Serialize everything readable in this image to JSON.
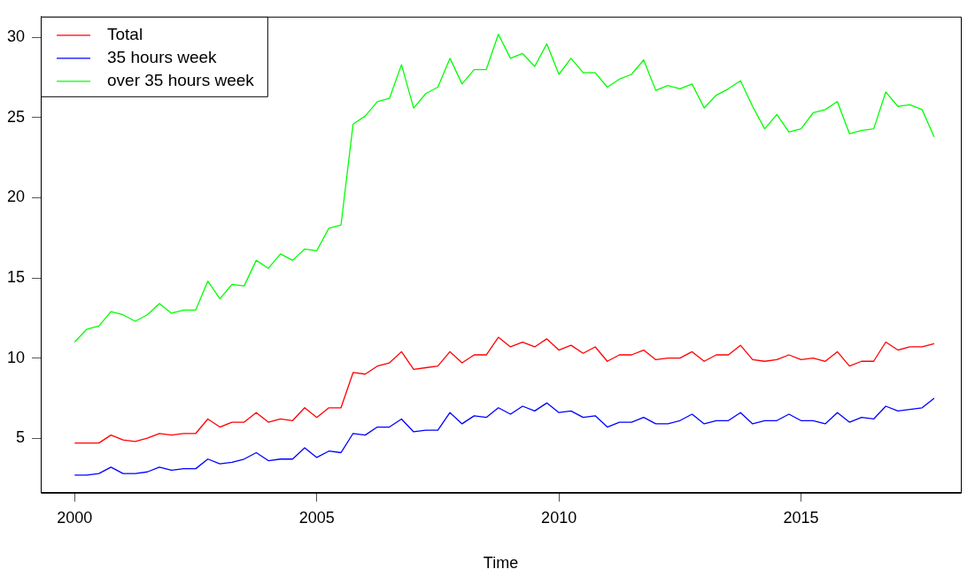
{
  "chart_data": {
    "type": "line",
    "xlabel": "Time",
    "legend": "top left",
    "grid": false,
    "marker": "none",
    "line_style": "solid",
    "x": [
      2000,
      2000.25,
      2000.5,
      2000.75,
      2001,
      2001.25,
      2001.5,
      2001.75,
      2002,
      2002.25,
      2002.5,
      2002.75,
      2003,
      2003.25,
      2003.5,
      2003.75,
      2004,
      2004.25,
      2004.5,
      2004.75,
      2005,
      2005.25,
      2005.5,
      2005.75,
      2006,
      2006.25,
      2006.5,
      2006.75,
      2007,
      2007.25,
      2007.5,
      2007.75,
      2008,
      2008.25,
      2008.5,
      2008.75,
      2009,
      2009.25,
      2009.5,
      2009.75,
      2010,
      2010.25,
      2010.5,
      2010.75,
      2011,
      2011.25,
      2011.5,
      2011.75,
      2012,
      2012.25,
      2012.5,
      2012.75,
      2013,
      2013.25,
      2013.5,
      2013.75,
      2014,
      2014.25,
      2014.5,
      2014.75,
      2015,
      2015.25,
      2015.5,
      2015.75,
      2016,
      2016.25,
      2016.5,
      2016.75,
      2017,
      2017.25,
      2017.5,
      2017.75
    ],
    "xlim": [
      1999.3,
      2018.3
    ],
    "xticks": [
      2000,
      2005,
      2010,
      2015
    ],
    "ylim": [
      1.6,
      31.3
    ],
    "yticks": [
      5,
      10,
      15,
      20,
      25,
      30
    ],
    "series": [
      {
        "name": "Total",
        "color": "#ff0000",
        "values": [
          4.7,
          4.7,
          4.7,
          5.2,
          4.9,
          4.8,
          5.0,
          5.3,
          5.2,
          5.3,
          5.3,
          6.2,
          5.7,
          6.0,
          6.0,
          6.6,
          6.0,
          6.2,
          6.1,
          6.9,
          6.3,
          6.9,
          6.9,
          9.1,
          9.0,
          9.5,
          9.7,
          10.4,
          9.3,
          9.4,
          9.5,
          10.4,
          9.7,
          10.2,
          10.2,
          11.3,
          10.7,
          11.0,
          10.7,
          11.2,
          10.5,
          10.8,
          10.3,
          10.7,
          9.8,
          10.2,
          10.2,
          10.5,
          9.9,
          10.0,
          10.0,
          10.4,
          9.8,
          10.2,
          10.2,
          10.8,
          9.9,
          9.8,
          9.9,
          10.2,
          9.9,
          10.0,
          9.8,
          10.4,
          9.5,
          9.8,
          9.8,
          11.0,
          10.5,
          10.7,
          10.7,
          10.9
        ]
      },
      {
        "name": "35 hours week",
        "color": "#0000ff",
        "values": [
          2.7,
          2.7,
          2.8,
          3.2,
          2.8,
          2.8,
          2.9,
          3.2,
          3.0,
          3.1,
          3.1,
          3.7,
          3.4,
          3.5,
          3.7,
          4.1,
          3.6,
          3.7,
          3.7,
          4.4,
          3.8,
          4.2,
          4.1,
          5.3,
          5.2,
          5.7,
          5.7,
          6.2,
          5.4,
          5.5,
          5.5,
          6.6,
          5.9,
          6.4,
          6.3,
          6.9,
          6.5,
          7.0,
          6.7,
          7.2,
          6.6,
          6.7,
          6.3,
          6.4,
          5.7,
          6.0,
          6.0,
          6.3,
          5.9,
          5.9,
          6.1,
          6.5,
          5.9,
          6.1,
          6.1,
          6.6,
          5.9,
          6.1,
          6.1,
          6.5,
          6.1,
          6.1,
          5.9,
          6.6,
          6.0,
          6.3,
          6.2,
          7.0,
          6.7,
          6.8,
          6.9,
          7.5
        ]
      },
      {
        "name": "over 35 hours week",
        "color": "#00ff00",
        "values": [
          11.0,
          11.8,
          12.0,
          12.9,
          12.7,
          12.3,
          12.7,
          13.4,
          12.8,
          13.0,
          13.0,
          14.8,
          13.7,
          14.6,
          14.5,
          16.1,
          15.6,
          16.5,
          16.1,
          16.8,
          16.7,
          18.1,
          18.3,
          24.6,
          25.1,
          26.0,
          26.2,
          28.3,
          25.6,
          26.5,
          26.9,
          28.7,
          27.1,
          28.0,
          28.0,
          30.2,
          28.7,
          29.0,
          28.2,
          29.6,
          27.7,
          28.7,
          27.8,
          27.8,
          26.9,
          27.4,
          27.7,
          28.6,
          26.7,
          27.0,
          26.8,
          27.1,
          25.6,
          26.4,
          26.8,
          27.3,
          25.7,
          24.3,
          25.2,
          24.1,
          24.3,
          25.3,
          25.5,
          26.0,
          24.0,
          24.2,
          24.3,
          26.6,
          25.7,
          25.8,
          25.5,
          23.8
        ]
      }
    ]
  }
}
